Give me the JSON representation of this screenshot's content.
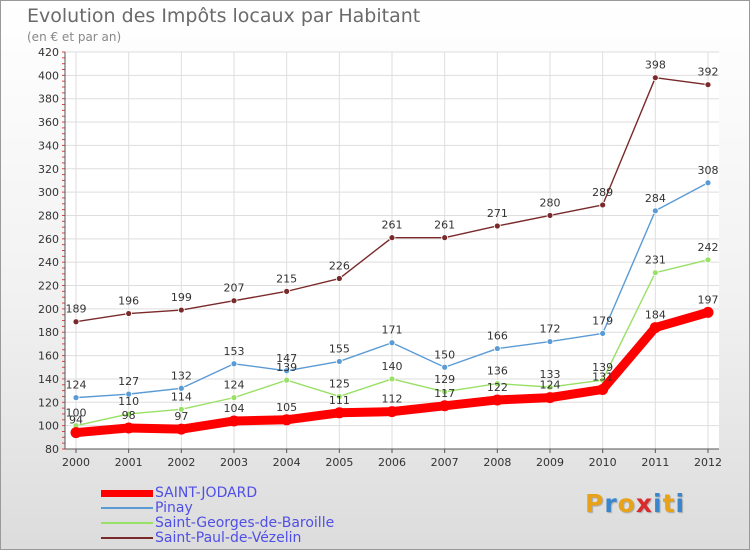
{
  "header": {
    "title": "Evolution des Impôts locaux par Habitant",
    "subtitle": "(en € et par an)"
  },
  "logo": {
    "letters": [
      "P",
      "r",
      "o",
      "x",
      "i",
      "t",
      "i"
    ],
    "colors": [
      "#e8a21a",
      "#3a86cc",
      "#e8a21a",
      "#d92b2b",
      "#3a86cc",
      "#e8a21a",
      "#3a86cc"
    ]
  },
  "chart_data": {
    "type": "line",
    "title": "Evolution des Impôts locaux par Habitant",
    "subtitle": "(en € et par an)",
    "xlabel": "",
    "ylabel": "",
    "x": [
      "2000",
      "2001",
      "2002",
      "2003",
      "2004",
      "2005",
      "2006",
      "2007",
      "2008",
      "2009",
      "2010",
      "2011",
      "2012"
    ],
    "yticks": [
      80,
      100,
      120,
      140,
      160,
      180,
      200,
      220,
      240,
      260,
      280,
      300,
      320,
      340,
      360,
      380,
      400,
      420
    ],
    "ylim": [
      80,
      420
    ],
    "grid": true,
    "legend_position": "bottom-left",
    "series": [
      {
        "name": "SAINT-JODARD",
        "color": "#ff0000",
        "style": "thick",
        "values": [
          94,
          98,
          97,
          104,
          105,
          111,
          112,
          117,
          122,
          124,
          131,
          184,
          197
        ],
        "labels": [
          "94",
          "98",
          "97",
          "104",
          "105",
          "111",
          "112",
          "117",
          "122",
          "124",
          "131",
          "184",
          "197"
        ]
      },
      {
        "name": "Pinay",
        "color": "#5b9bd5",
        "style": "thin",
        "values": [
          124,
          127,
          132,
          153,
          147,
          155,
          171,
          150,
          166,
          172,
          179,
          284,
          308
        ],
        "labels": [
          "124",
          "127",
          "132",
          "153",
          "147",
          "155",
          "171",
          "150",
          "166",
          "172",
          "179",
          "284",
          "308"
        ]
      },
      {
        "name": "Saint-Georges-de-Baroille",
        "color": "#99e066",
        "style": "thin",
        "values": [
          100,
          110,
          114,
          124,
          139,
          125,
          140,
          129,
          136,
          133,
          139,
          231,
          242
        ],
        "labels": [
          "100",
          "110",
          "114",
          "124",
          "139",
          "125",
          "140",
          "129",
          "136",
          "133",
          "139",
          "231",
          "242"
        ]
      },
      {
        "name": "Saint-Paul-de-Vézelin",
        "color": "#7a2a2a",
        "style": "thin",
        "values": [
          189,
          196,
          199,
          207,
          215,
          226,
          261,
          261,
          271,
          280,
          289,
          398,
          392
        ],
        "labels": [
          "189",
          "196",
          "199",
          "207",
          "215",
          "226",
          "261",
          "261",
          "271",
          "280",
          "289",
          "398",
          "392"
        ]
      }
    ]
  }
}
